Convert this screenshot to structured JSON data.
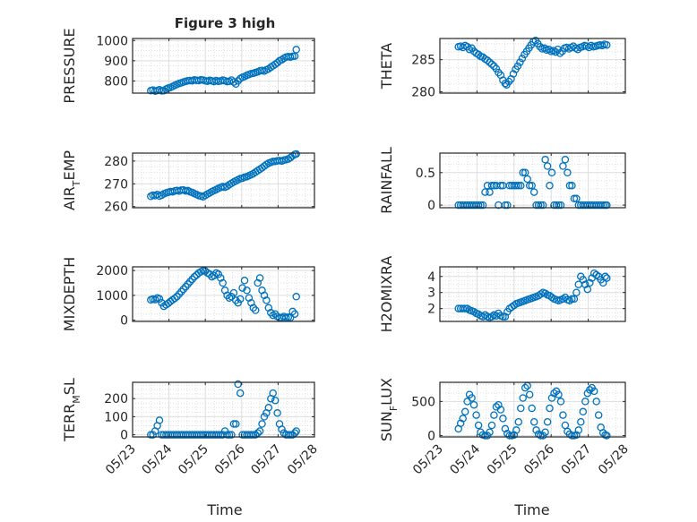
{
  "figure": {
    "title": "Figure 3 high",
    "x_tick_labels": [
      "05/23",
      "05/24",
      "05/25",
      "05/26",
      "05/27",
      "05/28"
    ],
    "xlabel": "Time"
  },
  "colors": {
    "marker": "#0072BD",
    "axis": "#262626",
    "grid": "#DFDFDF"
  },
  "chart_data": [
    {
      "type": "scatter",
      "title": "Figure 3 high",
      "ylabel": "PRESSURE",
      "xlim": [
        23,
        28
      ],
      "ylim": [
        740,
        1010
      ],
      "yticks": [
        800,
        900,
        1000
      ],
      "x": [
        23.5,
        23.56,
        23.62,
        23.68,
        23.74,
        23.8,
        23.86,
        23.92,
        23.98,
        24.04,
        24.1,
        24.16,
        24.22,
        24.28,
        24.34,
        24.4,
        24.46,
        24.52,
        24.58,
        24.64,
        24.7,
        24.76,
        24.82,
        24.88,
        24.94,
        25.0,
        25.06,
        25.12,
        25.18,
        25.24,
        25.3,
        25.36,
        25.42,
        25.48,
        25.54,
        25.6,
        25.66,
        25.72,
        25.78,
        25.84,
        25.9,
        25.96,
        26.02,
        26.08,
        26.14,
        26.2,
        26.26,
        26.32,
        26.38,
        26.44,
        26.5,
        26.56,
        26.62,
        26.68,
        26.74,
        26.8,
        26.86,
        26.92,
        26.98,
        27.04,
        27.1,
        27.16,
        27.22,
        27.28,
        27.34,
        27.4,
        27.46,
        27.5
      ],
      "y": [
        752,
        755,
        750,
        753,
        757,
        751,
        752,
        760,
        765,
        768,
        773,
        778,
        783,
        788,
        791,
        795,
        798,
        801,
        802,
        801,
        805,
        803,
        802,
        806,
        804,
        801,
        799,
        803,
        800,
        797,
        802,
        798,
        800,
        804,
        801,
        797,
        799,
        804,
        795,
        785,
        800,
        812,
        818,
        822,
        828,
        832,
        836,
        838,
        842,
        845,
        850,
        852,
        849,
        855,
        860,
        868,
        875,
        882,
        890,
        900,
        905,
        912,
        918,
        920,
        918,
        922,
        923,
        955
      ]
    },
    {
      "type": "scatter",
      "ylabel": "THETA",
      "xlim": [
        23,
        28
      ],
      "ylim": [
        279.8,
        288.3
      ],
      "yticks": [
        280,
        285
      ],
      "x": [
        23.5,
        23.56,
        23.62,
        23.68,
        23.74,
        23.8,
        23.86,
        23.92,
        23.98,
        24.04,
        24.1,
        24.16,
        24.22,
        24.28,
        24.34,
        24.4,
        24.46,
        24.52,
        24.58,
        24.64,
        24.7,
        24.76,
        24.8,
        24.86,
        24.92,
        24.98,
        25.04,
        25.1,
        25.16,
        25.22,
        25.28,
        25.34,
        25.4,
        25.46,
        25.52,
        25.58,
        25.64,
        25.7,
        25.76,
        25.82,
        25.88,
        25.94,
        26.0,
        26.06,
        26.12,
        26.18,
        26.24,
        26.3,
        26.36,
        26.42,
        26.48,
        26.54,
        26.6,
        26.66,
        26.72,
        26.78,
        26.84,
        26.9,
        26.96,
        27.02,
        27.08,
        27.14,
        27.2,
        27.26,
        27.32,
        27.38,
        27.44,
        27.5
      ],
      "y": [
        287.0,
        287.1,
        286.9,
        287.2,
        287.0,
        286.6,
        286.8,
        286.3,
        286.0,
        285.8,
        285.5,
        285.4,
        285.1,
        284.9,
        284.6,
        284.3,
        284.0,
        283.6,
        283.0,
        282.6,
        281.8,
        281.3,
        281.1,
        281.6,
        282.0,
        282.8,
        283.5,
        284.0,
        284.6,
        285.2,
        285.8,
        286.3,
        286.8,
        287.3,
        287.8,
        288.0,
        287.5,
        287.0,
        286.7,
        286.8,
        286.5,
        286.6,
        286.3,
        286.4,
        286.2,
        286.6,
        286.0,
        286.3,
        286.8,
        286.9,
        286.7,
        286.9,
        287.1,
        286.8,
        286.6,
        286.9,
        287.0,
        287.2,
        287.1,
        286.9,
        287.2,
        287.0,
        287.1,
        287.2,
        287.3,
        287.2,
        287.4,
        287.3
      ]
    },
    {
      "type": "scatter",
      "ylabel": "AIR_TEMP",
      "xlim": [
        23,
        28
      ],
      "ylim": [
        259.5,
        283.5
      ],
      "yticks": [
        260,
        270,
        280
      ],
      "x": [
        23.5,
        23.56,
        23.62,
        23.68,
        23.74,
        23.8,
        23.86,
        23.92,
        23.98,
        24.04,
        24.1,
        24.16,
        24.22,
        24.28,
        24.34,
        24.4,
        24.46,
        24.52,
        24.58,
        24.64,
        24.7,
        24.76,
        24.82,
        24.88,
        24.94,
        25.0,
        25.06,
        25.12,
        25.18,
        25.24,
        25.3,
        25.36,
        25.42,
        25.48,
        25.54,
        25.6,
        25.66,
        25.72,
        25.78,
        25.84,
        25.9,
        25.96,
        26.02,
        26.08,
        26.14,
        26.2,
        26.26,
        26.32,
        26.38,
        26.44,
        26.5,
        26.56,
        26.62,
        26.68,
        26.74,
        26.8,
        26.86,
        26.92,
        26.98,
        27.04,
        27.1,
        27.16,
        27.22,
        27.28,
        27.34,
        27.4,
        27.46,
        27.5
      ],
      "y": [
        264.5,
        265.0,
        264.8,
        265.3,
        264.6,
        265.0,
        265.6,
        266.0,
        266.3,
        266.6,
        266.5,
        266.9,
        267.1,
        266.8,
        267.2,
        267.3,
        266.9,
        267.0,
        266.5,
        266.2,
        265.7,
        265.3,
        264.8,
        264.6,
        264.3,
        264.9,
        265.5,
        266.0,
        266.6,
        267.0,
        267.5,
        268.0,
        268.4,
        268.8,
        268.5,
        269.0,
        269.6,
        270.2,
        270.8,
        271.3,
        271.8,
        272.3,
        272.5,
        272.9,
        273.1,
        273.6,
        274.0,
        274.5,
        275.1,
        275.8,
        276.4,
        277.0,
        277.8,
        278.5,
        279.1,
        279.4,
        279.8,
        279.9,
        280.1,
        280.2,
        280.0,
        280.4,
        280.6,
        280.9,
        281.5,
        282.3,
        282.9,
        283.1
      ]
    },
    {
      "type": "scatter",
      "ylabel": "RAINFALL",
      "xlim": [
        23,
        28
      ],
      "ylim": [
        -0.04,
        0.8
      ],
      "yticks": [
        0,
        0.5
      ],
      "x": [
        23.5,
        23.56,
        23.62,
        23.68,
        23.74,
        23.8,
        23.86,
        23.92,
        23.98,
        24.04,
        24.1,
        24.16,
        24.22,
        24.28,
        24.34,
        24.4,
        24.46,
        24.52,
        24.58,
        24.64,
        24.7,
        24.76,
        24.82,
        24.88,
        24.94,
        25.0,
        25.06,
        25.12,
        25.18,
        25.24,
        25.3,
        25.36,
        25.42,
        25.48,
        25.54,
        25.6,
        25.66,
        25.72,
        25.78,
        25.84,
        25.9,
        25.96,
        26.02,
        26.08,
        26.14,
        26.2,
        26.26,
        26.32,
        26.38,
        26.44,
        26.5,
        26.56,
        26.62,
        26.68,
        26.74,
        26.8,
        26.86,
        26.92,
        26.98,
        27.04,
        27.1,
        27.16,
        27.22,
        27.28,
        27.34,
        27.4,
        27.46,
        27.5
      ],
      "y": [
        0,
        0,
        0,
        0,
        0,
        0,
        0,
        0,
        0,
        0,
        0,
        0,
        0.2,
        0.3,
        0.2,
        0.3,
        0.3,
        0.3,
        0,
        0.3,
        0.3,
        0,
        0,
        0.3,
        0.3,
        0.3,
        0.3,
        0.3,
        0.3,
        0.5,
        0.5,
        0.4,
        0.3,
        0.3,
        0.2,
        0,
        0,
        0,
        0,
        0.7,
        0.6,
        0.3,
        0.5,
        0,
        0,
        0,
        0,
        0.6,
        0.7,
        0.5,
        0.3,
        0.3,
        0.1,
        0.1,
        0,
        0,
        0,
        0,
        0,
        0,
        0,
        0,
        0,
        0,
        0,
        0,
        0,
        0
      ]
    },
    {
      "type": "scatter",
      "ylabel": "MIXDEPTH",
      "xlim": [
        23,
        28
      ],
      "ylim": [
        -50,
        2150
      ],
      "yticks": [
        0,
        1000,
        2000
      ],
      "x": [
        23.5,
        23.56,
        23.62,
        23.68,
        23.74,
        23.8,
        23.86,
        23.92,
        23.98,
        24.04,
        24.1,
        24.16,
        24.22,
        24.28,
        24.34,
        24.4,
        24.46,
        24.52,
        24.58,
        24.64,
        24.7,
        24.76,
        24.82,
        24.88,
        24.94,
        25.0,
        25.06,
        25.12,
        25.18,
        25.24,
        25.3,
        25.36,
        25.42,
        25.48,
        25.54,
        25.6,
        25.66,
        25.72,
        25.78,
        25.84,
        25.9,
        25.96,
        26.02,
        26.08,
        26.14,
        26.2,
        26.26,
        26.32,
        26.38,
        26.44,
        26.5,
        26.56,
        26.62,
        26.68,
        26.74,
        26.8,
        26.86,
        26.92,
        26.98,
        27.04,
        27.1,
        27.16,
        27.22,
        27.28,
        27.34,
        27.4,
        27.46,
        27.5
      ],
      "y": [
        820,
        850,
        830,
        900,
        860,
        700,
        560,
        620,
        680,
        750,
        820,
        880,
        950,
        1050,
        1150,
        1250,
        1350,
        1450,
        1550,
        1650,
        1750,
        1820,
        1900,
        1950,
        2000,
        1980,
        1900,
        1850,
        1750,
        1800,
        1900,
        1850,
        1700,
        1500,
        1200,
        1000,
        900,
        950,
        1100,
        800,
        700,
        850,
        1300,
        1600,
        1200,
        900,
        700,
        500,
        400,
        1500,
        1700,
        1200,
        1000,
        800,
        500,
        300,
        200,
        250,
        150,
        100,
        100,
        150,
        100,
        120,
        100,
        350,
        250,
        950
      ]
    },
    {
      "type": "scatter",
      "ylabel": "H2OMIXRA",
      "xlim": [
        23,
        28
      ],
      "ylim": [
        1.2,
        4.6
      ],
      "yticks": [
        2,
        3,
        4
      ],
      "x": [
        23.5,
        23.56,
        23.62,
        23.68,
        23.74,
        23.8,
        23.86,
        23.92,
        23.98,
        24.04,
        24.1,
        24.16,
        24.22,
        24.28,
        24.34,
        24.4,
        24.46,
        24.52,
        24.58,
        24.64,
        24.7,
        24.76,
        24.82,
        24.88,
        24.94,
        25.0,
        25.06,
        25.12,
        25.18,
        25.24,
        25.3,
        25.36,
        25.42,
        25.48,
        25.54,
        25.6,
        25.66,
        25.72,
        25.78,
        25.84,
        25.9,
        25.96,
        26.02,
        26.08,
        26.14,
        26.2,
        26.26,
        26.32,
        26.38,
        26.44,
        26.5,
        26.56,
        26.62,
        26.68,
        26.74,
        26.8,
        26.86,
        26.92,
        26.98,
        27.04,
        27.1,
        27.16,
        27.22,
        27.28,
        27.34,
        27.4,
        27.46,
        27.5
      ],
      "y": [
        2.0,
        2.0,
        2.0,
        2.0,
        2.0,
        1.9,
        1.85,
        1.8,
        1.7,
        1.65,
        1.55,
        1.5,
        1.6,
        1.5,
        1.45,
        1.5,
        1.6,
        1.55,
        1.7,
        1.55,
        1.5,
        1.5,
        1.8,
        2.0,
        2.1,
        2.2,
        2.3,
        2.35,
        2.4,
        2.45,
        2.5,
        2.55,
        2.6,
        2.65,
        2.7,
        2.75,
        2.8,
        2.9,
        3.0,
        2.95,
        2.85,
        2.8,
        2.7,
        2.6,
        2.55,
        2.5,
        2.55,
        2.6,
        2.7,
        2.55,
        2.5,
        2.6,
        2.6,
        3.0,
        3.5,
        4.0,
        3.8,
        3.5,
        3.2,
        3.6,
        3.9,
        4.2,
        4.1,
        4.0,
        3.8,
        3.6,
        4.0,
        3.9
      ]
    },
    {
      "type": "scatter",
      "ylabel": "TERR_MSL",
      "xlim": [
        23,
        28
      ],
      "ylim": [
        -12,
        290
      ],
      "yticks": [
        0,
        100,
        200
      ],
      "x": [
        23.5,
        23.56,
        23.62,
        23.68,
        23.74,
        23.8,
        23.86,
        23.92,
        23.98,
        24.04,
        24.1,
        24.16,
        24.22,
        24.28,
        24.34,
        24.4,
        24.46,
        24.52,
        24.58,
        24.64,
        24.7,
        24.76,
        24.82,
        24.88,
        24.94,
        25.0,
        25.06,
        25.12,
        25.18,
        25.24,
        25.3,
        25.36,
        25.42,
        25.48,
        25.54,
        25.6,
        25.66,
        25.72,
        25.78,
        25.84,
        25.9,
        25.96,
        26.02,
        26.08,
        26.14,
        26.2,
        26.26,
        26.32,
        26.38,
        26.44,
        26.5,
        26.56,
        26.62,
        26.68,
        26.74,
        26.8,
        26.86,
        26.92,
        26.98,
        27.04,
        27.1,
        27.16,
        27.22,
        27.28,
        27.34,
        27.4,
        27.46,
        27.5
      ],
      "y": [
        0,
        0,
        20,
        50,
        80,
        0,
        0,
        0,
        0,
        0,
        0,
        0,
        0,
        0,
        0,
        0,
        0,
        0,
        0,
        0,
        0,
        0,
        0,
        0,
        0,
        0,
        0,
        0,
        0,
        0,
        0,
        0,
        0,
        0,
        20,
        0,
        0,
        0,
        60,
        60,
        280,
        230,
        0,
        0,
        0,
        0,
        0,
        0,
        0,
        10,
        20,
        60,
        100,
        120,
        150,
        200,
        230,
        190,
        120,
        60,
        30,
        10,
        0,
        0,
        0,
        0,
        10,
        20
      ]
    },
    {
      "type": "scatter",
      "ylabel": "SUN_FLUX",
      "xlim": [
        23,
        28
      ],
      "ylim": [
        -20,
        780
      ],
      "yticks": [
        0,
        500
      ],
      "x": [
        23.5,
        23.56,
        23.62,
        23.68,
        23.74,
        23.8,
        23.86,
        23.92,
        23.98,
        24.04,
        24.1,
        24.16,
        24.22,
        24.28,
        24.34,
        24.4,
        24.46,
        24.52,
        24.58,
        24.64,
        24.7,
        24.76,
        24.82,
        24.88,
        24.94,
        25.0,
        25.06,
        25.12,
        25.18,
        25.24,
        25.3,
        25.36,
        25.42,
        25.48,
        25.54,
        25.6,
        25.66,
        25.72,
        25.78,
        25.84,
        25.9,
        25.96,
        26.02,
        26.08,
        26.14,
        26.2,
        26.26,
        26.32,
        26.38,
        26.44,
        26.5,
        26.56,
        26.62,
        26.68,
        26.74,
        26.8,
        26.86,
        26.92,
        26.98,
        27.04,
        27.1,
        27.16,
        27.22,
        27.28,
        27.34,
        27.4,
        27.46,
        27.5
      ],
      "y": [
        100,
        180,
        250,
        350,
        500,
        600,
        550,
        450,
        300,
        150,
        50,
        10,
        0,
        0,
        50,
        150,
        300,
        420,
        450,
        380,
        250,
        100,
        30,
        0,
        0,
        10,
        80,
        200,
        400,
        550,
        700,
        730,
        600,
        400,
        200,
        80,
        20,
        0,
        0,
        50,
        200,
        400,
        550,
        620,
        650,
        600,
        500,
        300,
        150,
        60,
        20,
        0,
        0,
        10,
        80,
        200,
        350,
        500,
        620,
        670,
        700,
        650,
        500,
        300,
        120,
        40,
        10,
        0
      ]
    }
  ]
}
